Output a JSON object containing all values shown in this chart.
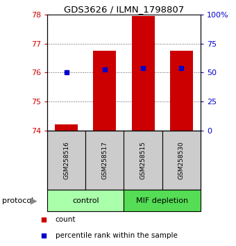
{
  "title": "GDS3626 / ILMN_1798807",
  "samples": [
    "GSM258516",
    "GSM258517",
    "GSM258515",
    "GSM258530"
  ],
  "bar_values": [
    74.2,
    76.75,
    77.95,
    76.75
  ],
  "percentile_values": [
    76.0,
    76.1,
    76.15,
    76.15
  ],
  "bar_color": "#cc0000",
  "percentile_color": "#0000cc",
  "ylim_left": [
    74,
    78
  ],
  "ylim_right": [
    0,
    100
  ],
  "yticks_left": [
    74,
    75,
    76,
    77,
    78
  ],
  "yticks_right": [
    0,
    25,
    50,
    75,
    100
  ],
  "ytick_labels_right": [
    "0",
    "25",
    "50",
    "75",
    "100%"
  ],
  "groups": [
    {
      "label": "control",
      "color": "#aaffaa",
      "start": 0,
      "end": 1
    },
    {
      "label": "MIF depletion",
      "color": "#55dd55",
      "start": 2,
      "end": 3
    }
  ],
  "group_box_color": "#cccccc",
  "background_color": "#ffffff",
  "legend_count_color": "#cc0000",
  "legend_percentile_color": "#0000cc",
  "dotted_line_color": "#555555",
  "bar_bottom": 74,
  "bar_width": 0.6,
  "protocol_label": "protocol",
  "title_fontsize": 9.5,
  "tick_fontsize": 8,
  "sample_fontsize": 6.5,
  "group_fontsize": 8,
  "legend_fontsize": 7.5
}
